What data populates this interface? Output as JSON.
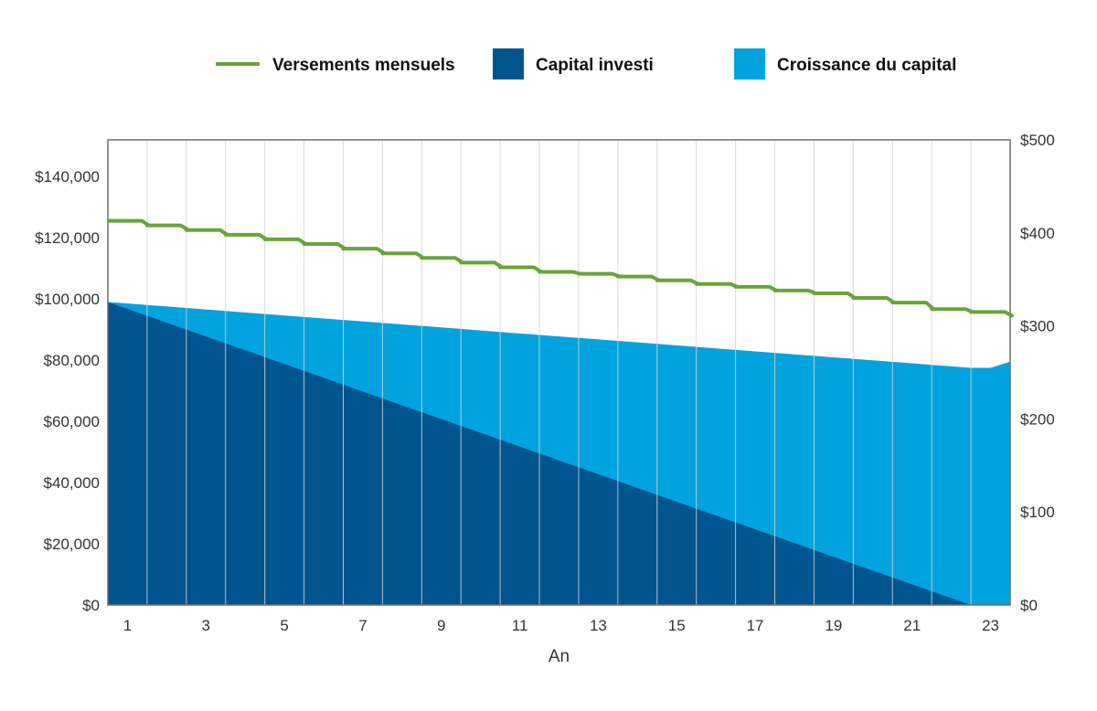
{
  "chart_data": {
    "type": "area",
    "title": "",
    "xlabel": "An",
    "ylabel": "",
    "y2label": "",
    "legend_position": "top",
    "grid": {
      "vertical": true,
      "horizontal": false
    },
    "x_tick_labels": [
      "1",
      "3",
      "5",
      "7",
      "9",
      "11",
      "13",
      "15",
      "17",
      "19",
      "21",
      "23"
    ],
    "y_left_ticks": [
      "$0",
      "$20,000",
      "$40,000",
      "$60,000",
      "$80,000",
      "$100,000",
      "$120,000",
      "$140,000"
    ],
    "y_right_ticks": [
      "$0",
      "$100",
      "$200",
      "$300",
      "$400",
      "$500"
    ],
    "ylim_left": [
      0,
      152000
    ],
    "ylim_right": [
      0,
      500
    ],
    "xlim": [
      0.5,
      23.5
    ],
    "series": [
      {
        "name": "Versements mensuels",
        "kind": "step-line",
        "axis": "right",
        "color": "#6aa33a",
        "x": [
          0.5,
          1.5,
          2.5,
          3.5,
          4.5,
          5.5,
          6.5,
          7.5,
          8.5,
          9.5,
          10.5,
          11.5,
          12.5,
          13.5,
          14.5,
          15.5,
          16.5,
          17.5,
          18.5,
          19.5,
          20.5,
          21.5,
          22.5,
          23.5
        ],
        "values": [
          413,
          408,
          403,
          398,
          393,
          388,
          383,
          378,
          373,
          368,
          363,
          358,
          356,
          353,
          349,
          345,
          342,
          338,
          335,
          330,
          325,
          318,
          315,
          311
        ]
      },
      {
        "name": "Capital investi",
        "kind": "area",
        "axis": "left",
        "color": "#00558f",
        "x": [
          0.5,
          22.5
        ],
        "values": [
          99000,
          0
        ]
      },
      {
        "name": "Croissance du capital",
        "kind": "area",
        "axis": "left",
        "color": "#00a3de",
        "x": [
          0.5,
          22.5,
          23.0,
          23.5
        ],
        "values": [
          99000,
          77500,
          77500,
          79500
        ]
      }
    ]
  }
}
